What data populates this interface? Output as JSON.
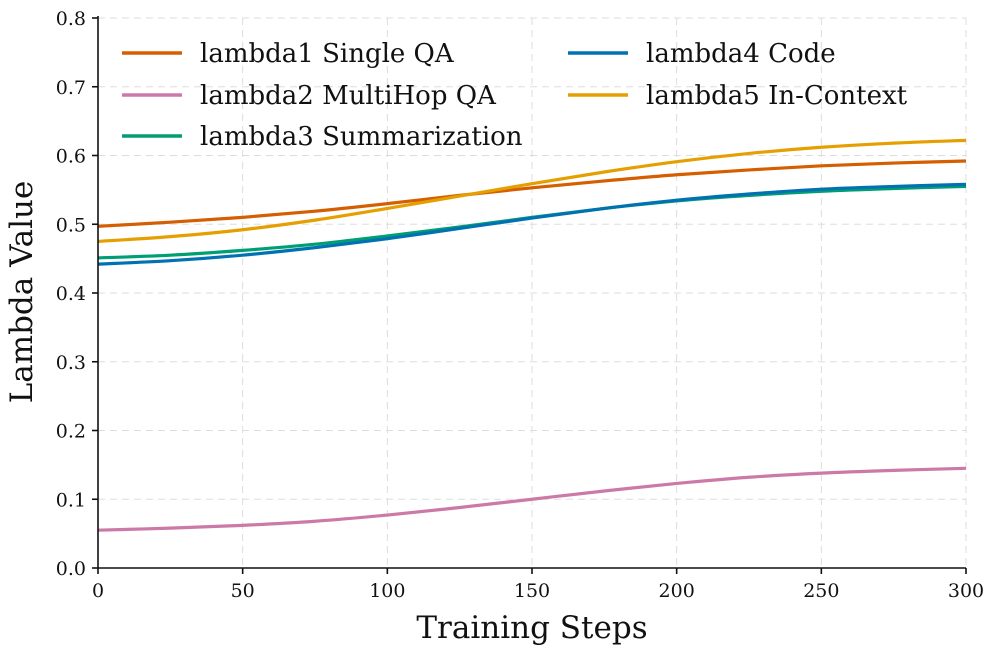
{
  "chart_data": {
    "type": "line",
    "title": "",
    "xlabel": "Training Steps",
    "ylabel": "Lambda Value",
    "xlim": [
      0,
      300
    ],
    "ylim": [
      0,
      0.8
    ],
    "x_ticks": [
      0,
      50,
      100,
      150,
      200,
      250,
      300
    ],
    "y_ticks": [
      0.0,
      0.1,
      0.2,
      0.3,
      0.4,
      0.5,
      0.6,
      0.7,
      0.8
    ],
    "x_tick_labels": [
      "0",
      "50",
      "100",
      "150",
      "200",
      "250",
      "300"
    ],
    "y_tick_labels": [
      "0.0",
      "0.1",
      "0.2",
      "0.3",
      "0.4",
      "0.5",
      "0.6",
      "0.7",
      "0.8"
    ],
    "grid": true,
    "legend_position": "top",
    "x": [
      0,
      25,
      50,
      75,
      100,
      125,
      150,
      175,
      200,
      225,
      250,
      275,
      300
    ],
    "series": [
      {
        "name": "lambda1 Single QA",
        "color": "#d55e00",
        "values": [
          0.497,
          0.503,
          0.51,
          0.519,
          0.53,
          0.542,
          0.553,
          0.563,
          0.572,
          0.579,
          0.585,
          0.589,
          0.592
        ]
      },
      {
        "name": "lambda2 MultiHop QA",
        "color": "#cc79a7",
        "values": [
          0.055,
          0.058,
          0.062,
          0.068,
          0.077,
          0.088,
          0.1,
          0.112,
          0.123,
          0.132,
          0.138,
          0.142,
          0.145
        ]
      },
      {
        "name": "lambda3 Summarization",
        "color": "#009e73",
        "values": [
          0.451,
          0.455,
          0.462,
          0.471,
          0.483,
          0.496,
          0.51,
          0.523,
          0.534,
          0.542,
          0.548,
          0.552,
          0.555
        ]
      },
      {
        "name": "lambda4 Code",
        "color": "#0072b2",
        "values": [
          0.442,
          0.447,
          0.455,
          0.466,
          0.479,
          0.494,
          0.509,
          0.523,
          0.535,
          0.544,
          0.551,
          0.555,
          0.558
        ]
      },
      {
        "name": "lambda5 In-Context",
        "color": "#e69f00",
        "values": [
          0.475,
          0.482,
          0.492,
          0.506,
          0.523,
          0.541,
          0.559,
          0.576,
          0.591,
          0.603,
          0.612,
          0.618,
          0.622
        ]
      }
    ]
  }
}
